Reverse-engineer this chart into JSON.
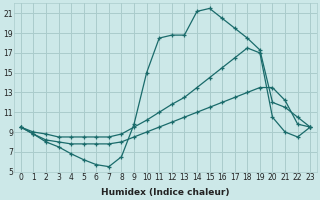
{
  "xlabel": "Humidex (Indice chaleur)",
  "background_color": "#cce8e8",
  "grid_color": "#aacccc",
  "line_color": "#1a6b6b",
  "xlim": [
    -0.5,
    23.5
  ],
  "ylim": [
    5,
    22
  ],
  "xticks": [
    0,
    1,
    2,
    3,
    4,
    5,
    6,
    7,
    8,
    9,
    10,
    11,
    12,
    13,
    14,
    15,
    16,
    17,
    18,
    19,
    20,
    21,
    22,
    23
  ],
  "yticks": [
    5,
    7,
    9,
    11,
    13,
    15,
    17,
    19,
    21
  ],
  "line1_x": [
    0,
    1,
    2,
    3,
    4,
    5,
    6,
    7,
    8,
    9,
    10,
    11,
    12,
    13,
    14,
    15,
    16,
    17,
    18,
    19,
    20,
    21,
    22,
    23
  ],
  "line1_y": [
    9.5,
    8.8,
    8.0,
    7.5,
    6.8,
    6.2,
    5.7,
    5.5,
    6.5,
    9.8,
    15.0,
    18.5,
    18.8,
    18.8,
    21.2,
    21.5,
    20.5,
    19.5,
    18.5,
    17.3,
    12.0,
    11.5,
    10.5,
    9.5
  ],
  "line2_x": [
    0,
    1,
    2,
    3,
    4,
    5,
    6,
    7,
    8,
    9,
    10,
    11,
    12,
    13,
    14,
    15,
    16,
    17,
    18,
    19,
    20,
    21,
    22,
    23
  ],
  "line2_y": [
    9.5,
    9.0,
    8.8,
    8.5,
    8.5,
    8.5,
    8.5,
    8.5,
    8.8,
    9.5,
    10.2,
    11.0,
    11.8,
    12.5,
    13.5,
    14.5,
    15.5,
    16.5,
    17.5,
    17.0,
    10.5,
    9.0,
    8.5,
    9.5
  ],
  "line3_x": [
    0,
    1,
    2,
    3,
    4,
    5,
    6,
    7,
    8,
    9,
    10,
    11,
    12,
    13,
    14,
    15,
    16,
    17,
    18,
    19,
    20,
    21,
    22,
    23
  ],
  "line3_y": [
    9.5,
    8.8,
    8.2,
    8.0,
    7.8,
    7.8,
    7.8,
    7.8,
    8.0,
    8.5,
    9.0,
    9.5,
    10.0,
    10.5,
    11.0,
    11.5,
    12.0,
    12.5,
    13.0,
    13.5,
    13.5,
    12.2,
    9.8,
    9.5
  ]
}
